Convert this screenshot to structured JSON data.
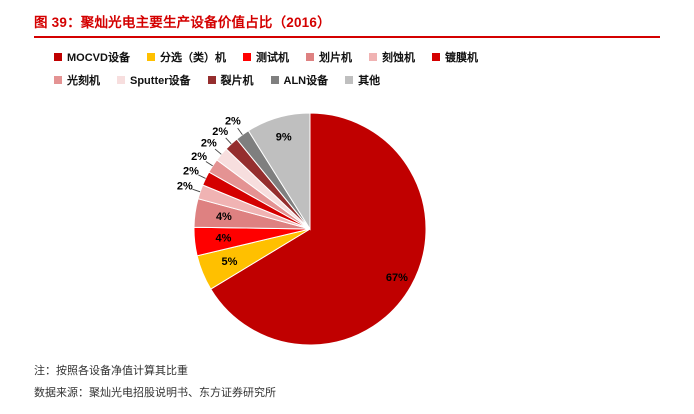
{
  "header": {
    "title": "图 39：聚灿光电主要生产设备价值占比（2016）",
    "accent_color": "#d40000"
  },
  "chart_data": {
    "type": "pie",
    "title": "聚灿光电主要生产设备价值占比（2016）",
    "unit": "%",
    "legend_position": "top",
    "legend_split_index": 6,
    "slices": [
      {
        "label": "MOCVD设备",
        "value": 67,
        "display": "67%",
        "color": "#c00000"
      },
      {
        "label": "分选（类）机",
        "value": 5,
        "display": "5%",
        "color": "#ffc000"
      },
      {
        "label": "测试机",
        "value": 4,
        "display": "4%",
        "color": "#ff0000"
      },
      {
        "label": "划片机",
        "value": 4,
        "display": "4%",
        "color": "#de8181"
      },
      {
        "label": "刻蚀机",
        "value": 2,
        "display": "2%",
        "color": "#f0b3b3"
      },
      {
        "label": "镀膜机",
        "value": 2,
        "display": "2%",
        "color": "#d40000"
      },
      {
        "label": "光刻机",
        "value": 2,
        "display": "2%",
        "color": "#e49393"
      },
      {
        "label": "Sputter设备",
        "value": 2,
        "display": "2%",
        "color": "#f7dede"
      },
      {
        "label": "裂片机",
        "value": 2,
        "display": "2%",
        "color": "#952e2e"
      },
      {
        "label": "ALN设备",
        "value": 2,
        "display": "2%",
        "color": "#7f7f7f"
      },
      {
        "label": "其他",
        "value": 9,
        "display": "9%",
        "color": "#bfbfbf"
      }
    ]
  },
  "footer": {
    "note": "注：按照各设备净值计算其比重",
    "source": "数据来源：聚灿光电招股说明书、东方证券研究所"
  }
}
